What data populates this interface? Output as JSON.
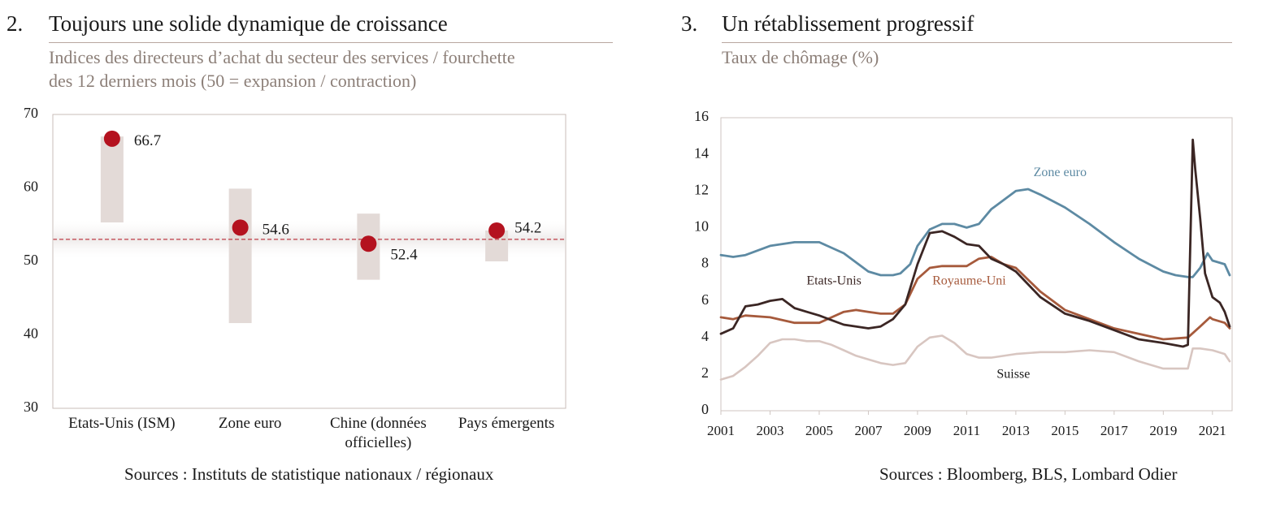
{
  "left": {
    "number": "2.",
    "title": "Toujours une solide dynamique de croissance",
    "subtitle_line1": "Indices des directeurs d’achat du secteur des services / fourchette",
    "subtitle_line2": "des 12 derniers mois (50 = expansion / contraction)",
    "sources": "Sources : Instituts de statistique nationaux / régionaux"
  },
  "right": {
    "number": "3.",
    "title": "Un rétablissement progressif",
    "subtitle": "Taux de chômage (%)",
    "sources": "Sources : Bloomberg, BLS, Lombard Odier"
  },
  "colors": {
    "dot": "#b4121f",
    "range_bar": "#e3dad7",
    "ref_line": "#b4121f",
    "zone_euro": "#5d8aa3",
    "etats_unis": "#3b2624",
    "royaume_uni": "#a65a3c",
    "suisse": "#d8c6c1"
  },
  "chart_data": [
    {
      "type": "scatter",
      "categories": [
        "Etats-Unis (ISM)",
        "Zone euro",
        "Chine (données officielles)",
        "Pays émergents"
      ],
      "category_lines": [
        [
          "Etats-Unis (ISM)"
        ],
        [
          "Zone euro"
        ],
        [
          "Chine (données",
          "officielles)"
        ],
        [
          "Pays émergents"
        ]
      ],
      "values": [
        66.7,
        54.6,
        52.4,
        54.2
      ],
      "value_labels": [
        "66.7",
        "54.6",
        "52.4",
        "54.2"
      ],
      "range_low": [
        55.3,
        41.6,
        47.5,
        50.0
      ],
      "range_high": [
        67.0,
        59.9,
        56.5,
        54.2
      ],
      "reference_line": 53,
      "ylim": [
        30,
        70
      ],
      "yticks": [
        30,
        40,
        50,
        60,
        70
      ]
    },
    {
      "type": "line",
      "xlim": [
        2001,
        2021.8
      ],
      "xticks": [
        2001,
        2003,
        2005,
        2007,
        2009,
        2011,
        2013,
        2015,
        2017,
        2019,
        2021
      ],
      "ylim": [
        0,
        16
      ],
      "yticks": [
        0,
        2,
        4,
        6,
        8,
        10,
        12,
        14,
        16
      ],
      "series": [
        {
          "name": "Zone euro",
          "color_key": "zone_euro",
          "x": [
            2001,
            2001.5,
            2002,
            2003,
            2004,
            2005,
            2006,
            2007,
            2007.5,
            2008,
            2008.3,
            2008.7,
            2009,
            2009.5,
            2010,
            2010.5,
            2011,
            2011.5,
            2012,
            2012.5,
            2013,
            2013.5,
            2014,
            2015,
            2016,
            2017,
            2018,
            2019,
            2019.5,
            2020,
            2020.2,
            2020.5,
            2020.8,
            2021,
            2021.5,
            2021.7
          ],
          "y": [
            8.5,
            8.4,
            8.5,
            9.0,
            9.2,
            9.2,
            8.6,
            7.6,
            7.4,
            7.4,
            7.5,
            8.0,
            9.0,
            9.9,
            10.2,
            10.2,
            10.0,
            10.2,
            11.0,
            11.5,
            12.0,
            12.1,
            11.8,
            11.1,
            10.2,
            9.2,
            8.3,
            7.6,
            7.4,
            7.3,
            7.3,
            7.8,
            8.6,
            8.2,
            8.0,
            7.4
          ]
        },
        {
          "name": "Etats-Unis",
          "color_key": "etats_unis",
          "x": [
            2001,
            2001.5,
            2002,
            2002.5,
            2003,
            2003.5,
            2004,
            2004.5,
            2005,
            2006,
            2007,
            2007.5,
            2008,
            2008.5,
            2009,
            2009.5,
            2010,
            2010.5,
            2011,
            2011.5,
            2012,
            2012.5,
            2013,
            2014,
            2015,
            2016,
            2017,
            2018,
            2019,
            2019.8,
            2020.0,
            2020.2,
            2020.3,
            2020.5,
            2020.7,
            2021,
            2021.3,
            2021.5,
            2021.7
          ],
          "y": [
            4.2,
            4.5,
            5.7,
            5.8,
            6.0,
            6.1,
            5.6,
            5.4,
            5.2,
            4.7,
            4.5,
            4.6,
            5.0,
            5.8,
            8.0,
            9.7,
            9.8,
            9.5,
            9.1,
            9.0,
            8.3,
            8.0,
            7.6,
            6.2,
            5.3,
            4.9,
            4.4,
            3.9,
            3.7,
            3.5,
            3.6,
            14.8,
            13.2,
            10.5,
            7.5,
            6.2,
            5.9,
            5.4,
            4.6
          ]
        },
        {
          "name": "Royaume-Uni",
          "color_key": "royaume_uni",
          "x": [
            2001,
            2001.5,
            2002,
            2003,
            2004,
            2005,
            2006,
            2006.5,
            2007,
            2007.5,
            2008,
            2008.5,
            2009,
            2009.5,
            2010,
            2010.5,
            2011,
            2011.5,
            2012,
            2012.5,
            2013,
            2014,
            2015,
            2016,
            2017,
            2018,
            2019,
            2020,
            2020.5,
            2020.9,
            2021,
            2021.5,
            2021.7
          ],
          "y": [
            5.1,
            5.0,
            5.2,
            5.1,
            4.8,
            4.8,
            5.4,
            5.5,
            5.4,
            5.3,
            5.3,
            5.8,
            7.2,
            7.8,
            7.9,
            7.9,
            7.9,
            8.3,
            8.4,
            8.0,
            7.8,
            6.5,
            5.5,
            5.0,
            4.5,
            4.2,
            3.9,
            4.0,
            4.6,
            5.1,
            5.0,
            4.8,
            4.5
          ]
        },
        {
          "name": "Suisse",
          "color_key": "suisse",
          "x": [
            2001,
            2001.5,
            2002,
            2002.5,
            2003,
            2003.5,
            2004,
            2004.5,
            2005,
            2005.5,
            2006,
            2006.5,
            2007,
            2007.5,
            2008,
            2008.5,
            2009,
            2009.5,
            2010,
            2010.5,
            2011,
            2011.5,
            2012,
            2013,
            2014,
            2015,
            2016,
            2017,
            2018,
            2019,
            2020,
            2020.2,
            2020.5,
            2021,
            2021.5,
            2021.7
          ],
          "y": [
            1.7,
            1.9,
            2.4,
            3.0,
            3.7,
            3.9,
            3.9,
            3.8,
            3.8,
            3.6,
            3.3,
            3.0,
            2.8,
            2.6,
            2.5,
            2.6,
            3.5,
            4.0,
            4.1,
            3.7,
            3.1,
            2.9,
            2.9,
            3.1,
            3.2,
            3.2,
            3.3,
            3.2,
            2.7,
            2.3,
            2.3,
            3.4,
            3.4,
            3.3,
            3.1,
            2.7
          ]
        }
      ],
      "annotations": [
        {
          "text": "Zone euro",
          "x": 2014.8,
          "y": 12.8,
          "color_key": "zone_euro"
        },
        {
          "text": "Etats-Unis",
          "x": 2005.6,
          "y": 6.9,
          "color_key": "etats_unis"
        },
        {
          "text": "Royaume-Uni",
          "x": 2011.1,
          "y": 6.9,
          "color_key": "royaume_uni"
        },
        {
          "text": "Suisse",
          "x": 2012.9,
          "y": 1.8,
          "color_key": "suisse"
        }
      ]
    }
  ]
}
